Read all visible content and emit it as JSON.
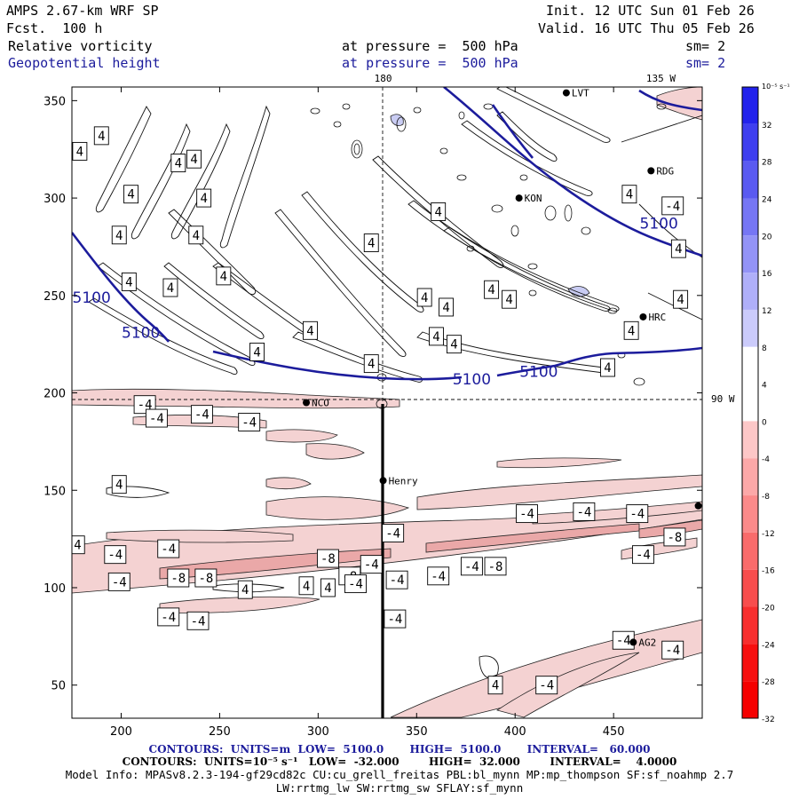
{
  "header": {
    "model": "AMPS 2.67-km WRF SP",
    "forecast": "Fcst.  100 h",
    "init": "Init. 12 UTC Sun 01 Feb 26",
    "valid": "Valid. 16 UTC Thu 05 Feb 26",
    "field1": "Relative vorticity",
    "field2": "Geopotential height",
    "pressure1": "at pressure =  500 hPa",
    "pressure2": "at pressure =  500 hPa",
    "sm1": "sm= 2",
    "sm2": "sm= 2"
  },
  "chart_data": {
    "type": "heatmap",
    "xlim": [
      175,
      495
    ],
    "ylim": [
      33,
      357
    ],
    "x_ticks": [
      200,
      250,
      300,
      350,
      400,
      450
    ],
    "y_ticks": [
      50,
      100,
      150,
      200,
      250,
      300,
      350
    ],
    "meridian_labels": [
      {
        "text": "180",
        "x": 333,
        "y": 357
      },
      {
        "text": "135 W",
        "x": 474,
        "y": 357
      },
      {
        "text": "90 W",
        "x": 495,
        "y": 197
      }
    ],
    "stations": [
      {
        "name": "LVT",
        "x": 426,
        "y": 354
      },
      {
        "name": "RDG",
        "x": 469,
        "y": 314
      },
      {
        "name": "KON",
        "x": 402,
        "y": 300
      },
      {
        "name": "HRC",
        "x": 465,
        "y": 239
      },
      {
        "name": "NCO",
        "x": 294,
        "y": 195
      },
      {
        "name": "Henry",
        "x": 333,
        "y": 155
      },
      {
        "name": "AG2",
        "x": 460,
        "y": 72
      },
      {
        "name": "",
        "x": 493,
        "y": 142
      }
    ],
    "height_contour_labels": [
      {
        "text": "5100",
        "x": 185,
        "y": 249
      },
      {
        "text": "5100",
        "x": 210,
        "y": 231
      },
      {
        "text": "5100",
        "x": 378,
        "y": 207
      },
      {
        "text": "5100",
        "x": 412,
        "y": 211
      },
      {
        "text": "5100",
        "x": 473,
        "y": 287
      }
    ],
    "vorticity_contour_labels": [
      {
        "text": "4",
        "x": 179,
        "y": 324
      },
      {
        "text": "4",
        "x": 190,
        "y": 332
      },
      {
        "text": "4",
        "x": 229,
        "y": 318
      },
      {
        "text": "4",
        "x": 237,
        "y": 320
      },
      {
        "text": "4",
        "x": 205,
        "y": 302
      },
      {
        "text": "4",
        "x": 242,
        "y": 300
      },
      {
        "text": "4",
        "x": 199,
        "y": 281
      },
      {
        "text": "4",
        "x": 238,
        "y": 281
      },
      {
        "text": "4",
        "x": 327,
        "y": 277
      },
      {
        "text": "4",
        "x": 361,
        "y": 293
      },
      {
        "text": "4",
        "x": 204,
        "y": 257
      },
      {
        "text": "4",
        "x": 225,
        "y": 254
      },
      {
        "text": "4",
        "x": 252,
        "y": 260
      },
      {
        "text": "4",
        "x": 388,
        "y": 253
      },
      {
        "text": "4",
        "x": 354,
        "y": 249
      },
      {
        "text": "4",
        "x": 296,
        "y": 232
      },
      {
        "text": "4",
        "x": 365,
        "y": 244
      },
      {
        "text": "4",
        "x": 360,
        "y": 229
      },
      {
        "text": "4",
        "x": 369,
        "y": 225
      },
      {
        "text": "4",
        "x": 397,
        "y": 248
      },
      {
        "text": "4",
        "x": 459,
        "y": 232
      },
      {
        "text": "4",
        "x": 269,
        "y": 221
      },
      {
        "text": "4",
        "x": 327,
        "y": 215
      },
      {
        "text": "4",
        "x": 447,
        "y": 213
      },
      {
        "text": "4",
        "x": 483,
        "y": 274
      },
      {
        "text": "4",
        "x": 484,
        "y": 248
      },
      {
        "text": "4",
        "x": 458,
        "y": 302
      },
      {
        "text": "-4",
        "x": 480,
        "y": 296
      },
      {
        "text": "-4",
        "x": 212,
        "y": 194
      },
      {
        "text": "-4",
        "x": 218,
        "y": 187
      },
      {
        "text": "-4",
        "x": 241,
        "y": 189
      },
      {
        "text": "-4",
        "x": 265,
        "y": 185
      },
      {
        "text": "4",
        "x": 199,
        "y": 153
      },
      {
        "text": "-4",
        "x": 176,
        "y": 122
      },
      {
        "text": "-4",
        "x": 197,
        "y": 117
      },
      {
        "text": "-4",
        "x": 224,
        "y": 120
      },
      {
        "text": "-4",
        "x": 338,
        "y": 128
      },
      {
        "text": "-4",
        "x": 378,
        "y": 111
      },
      {
        "text": "-8",
        "x": 390,
        "y": 111
      },
      {
        "text": "-4",
        "x": 406,
        "y": 138
      },
      {
        "text": "-4",
        "x": 435,
        "y": 139
      },
      {
        "text": "-4",
        "x": 462,
        "y": 138
      },
      {
        "text": "-8",
        "x": 481,
        "y": 126
      },
      {
        "text": "-4",
        "x": 465,
        "y": 117
      },
      {
        "text": "-8",
        "x": 229,
        "y": 105
      },
      {
        "text": "-8",
        "x": 243,
        "y": 105
      },
      {
        "text": "-8",
        "x": 305,
        "y": 115
      },
      {
        "text": "-8",
        "x": 316,
        "y": 106
      },
      {
        "text": "-4",
        "x": 327,
        "y": 112
      },
      {
        "text": "-4",
        "x": 199,
        "y": 103
      },
      {
        "text": "-4",
        "x": 339,
        "y": 84
      },
      {
        "text": "4",
        "x": 294,
        "y": 101
      },
      {
        "text": "4",
        "x": 305,
        "y": 100
      },
      {
        "text": "4",
        "x": 263,
        "y": 99
      },
      {
        "text": "-4",
        "x": 340,
        "y": 104
      },
      {
        "text": "-4",
        "x": 224,
        "y": 85
      },
      {
        "text": "-4",
        "x": 239,
        "y": 83
      },
      {
        "text": "-4",
        "x": 319,
        "y": 102
      },
      {
        "text": "-4",
        "x": 361,
        "y": 106
      },
      {
        "text": "-4",
        "x": 455,
        "y": 73
      },
      {
        "text": "-4",
        "x": 480,
        "y": 68
      },
      {
        "text": "4",
        "x": 390,
        "y": 50
      },
      {
        "text": "-4",
        "x": 416,
        "y": 50
      }
    ],
    "colorbar": {
      "unit_label": "10⁻⁵ s⁻¹",
      "ticks": [
        32,
        28,
        24,
        20,
        16,
        12,
        8,
        4,
        0,
        -4,
        -8,
        -12,
        -16,
        -20,
        -24,
        -28,
        -32
      ]
    }
  },
  "footer": {
    "line1": "CONTOURS:  UNITS=m  LOW=  5100.0       HIGH=  5100.0       INTERVAL=   60.000",
    "line2": "CONTOURS:  UNITS=10⁻⁵ s⁻¹   LOW=  -32.000        HIGH=  32.000        INTERVAL=    4.0000",
    "line3": "Model Info: MPASv8.2.3-194-gf29cd82c CU:cu_grell_freitas PBL:bl_mynn MP:mp_thompson SF:sf_noahmp 2.7",
    "line4": "LW:rrtmg_lw SW:rrtmg_sw SFLAY:sf_mynn"
  },
  "colors": {
    "height_contour": "#1c1c9c",
    "negative_fill": "#f4d2d2",
    "negative_fill_strong": "#eaa8a8",
    "positive_fill": "#c9ccf3",
    "label_box": "#ffffff"
  }
}
